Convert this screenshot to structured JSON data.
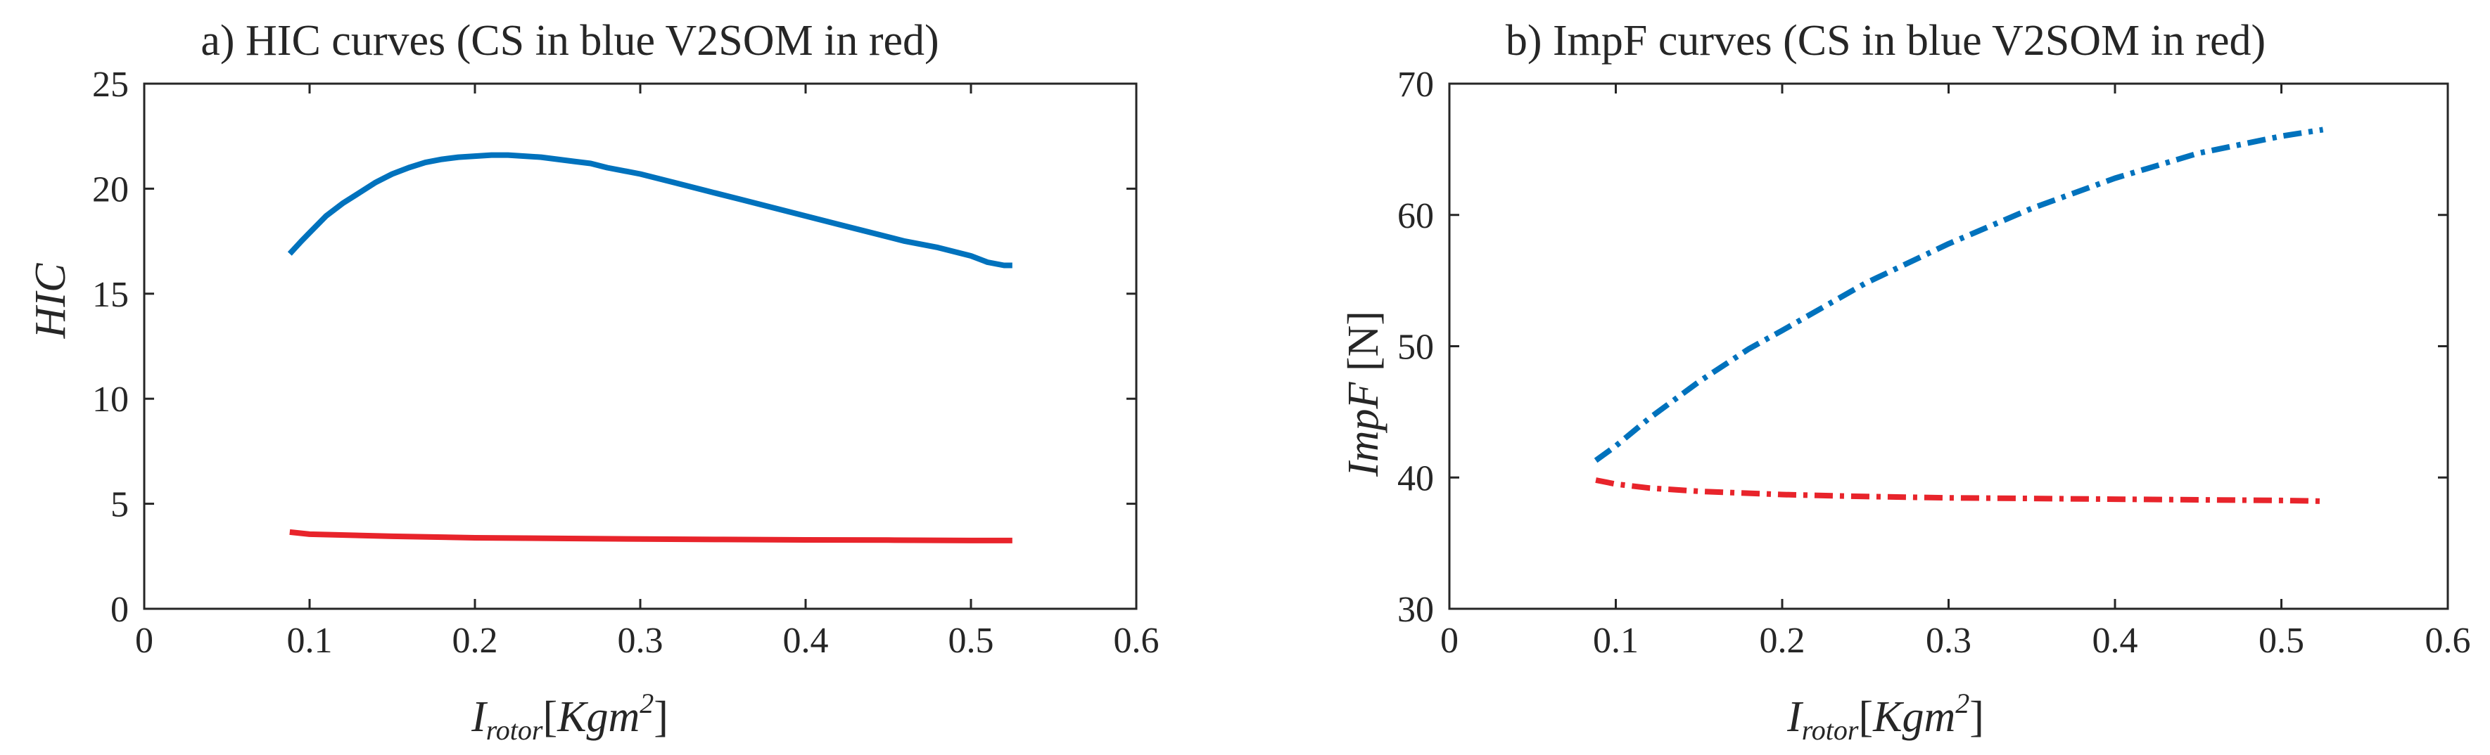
{
  "chart_data": [
    {
      "type": "line",
      "title": "a) HIC curves (CS in blue V2SOM in red)",
      "ylabel": "HIC",
      "xlabel": {
        "base": "I",
        "sub": "rotor",
        "bracket_open": "[",
        "unit": "Kgm",
        "sup": "2",
        "bracket_close": "]"
      },
      "xlim": [
        0,
        0.6
      ],
      "ylim": [
        0,
        25
      ],
      "xticks": [
        "0",
        "0.1",
        "0.2",
        "0.3",
        "0.4",
        "0.5",
        "0.6"
      ],
      "yticks": [
        "0",
        "5",
        "10",
        "15",
        "20",
        "25"
      ],
      "series": [
        {
          "name": "CS",
          "color": "#0072BD",
          "linestyle": "solid",
          "x": [
            0.088,
            0.095,
            0.1,
            0.11,
            0.12,
            0.13,
            0.14,
            0.15,
            0.16,
            0.17,
            0.18,
            0.19,
            0.2,
            0.21,
            0.22,
            0.23,
            0.24,
            0.25,
            0.26,
            0.27,
            0.28,
            0.3,
            0.32,
            0.34,
            0.36,
            0.38,
            0.4,
            0.42,
            0.44,
            0.46,
            0.48,
            0.5,
            0.51,
            0.52,
            0.525
          ],
          "y": [
            16.9,
            17.5,
            17.9,
            18.7,
            19.3,
            19.8,
            20.3,
            20.7,
            21.0,
            21.25,
            21.4,
            21.5,
            21.55,
            21.6,
            21.6,
            21.55,
            21.5,
            21.4,
            21.3,
            21.2,
            21.0,
            20.7,
            20.3,
            19.9,
            19.5,
            19.1,
            18.7,
            18.3,
            17.9,
            17.5,
            17.2,
            16.8,
            16.5,
            16.35,
            16.35
          ]
        },
        {
          "name": "V2SOM",
          "color": "#E8242B",
          "linestyle": "solid",
          "x": [
            0.088,
            0.1,
            0.15,
            0.2,
            0.25,
            0.3,
            0.35,
            0.4,
            0.45,
            0.5,
            0.525
          ],
          "y": [
            3.65,
            3.55,
            3.45,
            3.38,
            3.35,
            3.32,
            3.3,
            3.28,
            3.27,
            3.25,
            3.25
          ]
        }
      ]
    },
    {
      "type": "line",
      "title": "b) ImpF curves (CS in blue V2SOM in red)",
      "ylabel": {
        "text": "ImpF",
        "unit": "[N]"
      },
      "xlabel": {
        "base": "I",
        "sub": "rotor",
        "bracket_open": "[",
        "unit": "Kgm",
        "sup": "2",
        "bracket_close": "]"
      },
      "xlim": [
        0,
        0.6
      ],
      "ylim": [
        30,
        70
      ],
      "xticks": [
        "0",
        "0.1",
        "0.2",
        "0.3",
        "0.4",
        "0.5",
        "0.6"
      ],
      "yticks": [
        "30",
        "40",
        "50",
        "60",
        "70"
      ],
      "series": [
        {
          "name": "CS",
          "color": "#0072BD",
          "linestyle": "dashdot",
          "x": [
            0.088,
            0.1,
            0.12,
            0.15,
            0.18,
            0.2,
            0.25,
            0.3,
            0.35,
            0.4,
            0.45,
            0.5,
            0.525
          ],
          "y": [
            41.3,
            42.4,
            44.5,
            47.3,
            49.8,
            51.2,
            54.8,
            57.8,
            60.5,
            62.8,
            64.7,
            66.0,
            66.5
          ]
        },
        {
          "name": "V2SOM",
          "color": "#E8242B",
          "linestyle": "dashdot",
          "x": [
            0.088,
            0.1,
            0.12,
            0.15,
            0.2,
            0.25,
            0.3,
            0.35,
            0.4,
            0.45,
            0.5,
            0.525
          ],
          "y": [
            39.8,
            39.5,
            39.2,
            38.95,
            38.7,
            38.55,
            38.45,
            38.4,
            38.35,
            38.3,
            38.25,
            38.2
          ]
        }
      ]
    }
  ]
}
